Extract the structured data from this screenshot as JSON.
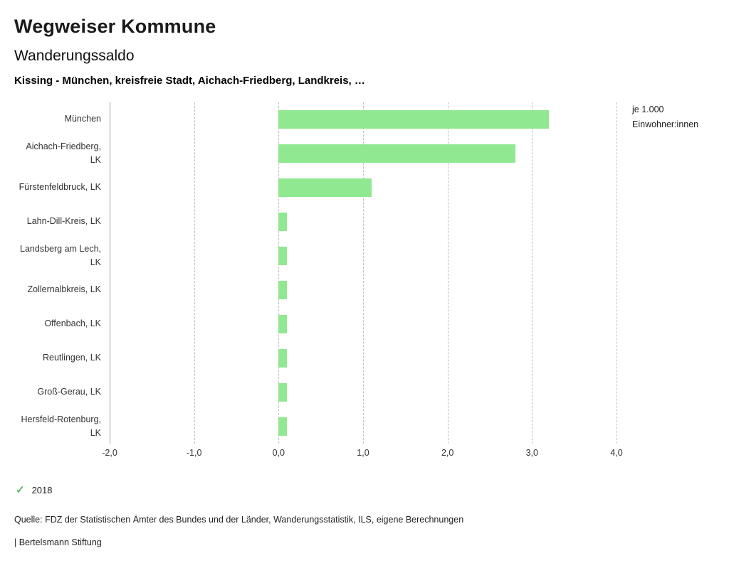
{
  "header": {
    "title": "Wegweiser Kommune",
    "subtitle": "Wanderungssaldo",
    "description": "Kissing - München, kreisfreie Stadt, Aichach-Friedberg, Landkreis, …"
  },
  "chart_data": {
    "type": "bar",
    "orientation": "horizontal",
    "title": "Wanderungssaldo",
    "categories": [
      "München",
      "Aichach-Friedberg, LK",
      "Fürstenfeldbruck, LK",
      "Lahn-Dill-Kreis, LK",
      "Landsberg am Lech, LK",
      "Zollernalbkreis, LK",
      "Offenbach, LK",
      "Reutlingen, LK",
      "Groß-Gerau, LK",
      "Hersfeld-Rotenburg, LK"
    ],
    "series": [
      {
        "name": "2018",
        "values": [
          3.2,
          2.8,
          1.1,
          0.1,
          0.1,
          0.1,
          0.1,
          0.1,
          0.1,
          0.1
        ]
      }
    ],
    "xlim": [
      -2.0,
      4.0
    ],
    "x_tick_values": [
      -2,
      -1,
      0,
      1,
      2,
      3,
      4
    ],
    "x_tick_labels": [
      "-2,0",
      "-1,0",
      "0,0",
      "1,0",
      "2,0",
      "3,0",
      "4,0"
    ],
    "xlabel_line1": "je 1.000",
    "xlabel_line2": "Einwohner:innen",
    "grid": true,
    "bar_color": "#90e890"
  },
  "legend": {
    "year": "2018",
    "check_icon": "✓",
    "check_color": "#5cb85c"
  },
  "footer": {
    "source": "Quelle: FDZ der Statistischen Ämter des Bundes und der Länder, Wanderungsstatistik, ILS, eigene Berechnungen",
    "branding": "| Bertelsmann Stiftung"
  }
}
